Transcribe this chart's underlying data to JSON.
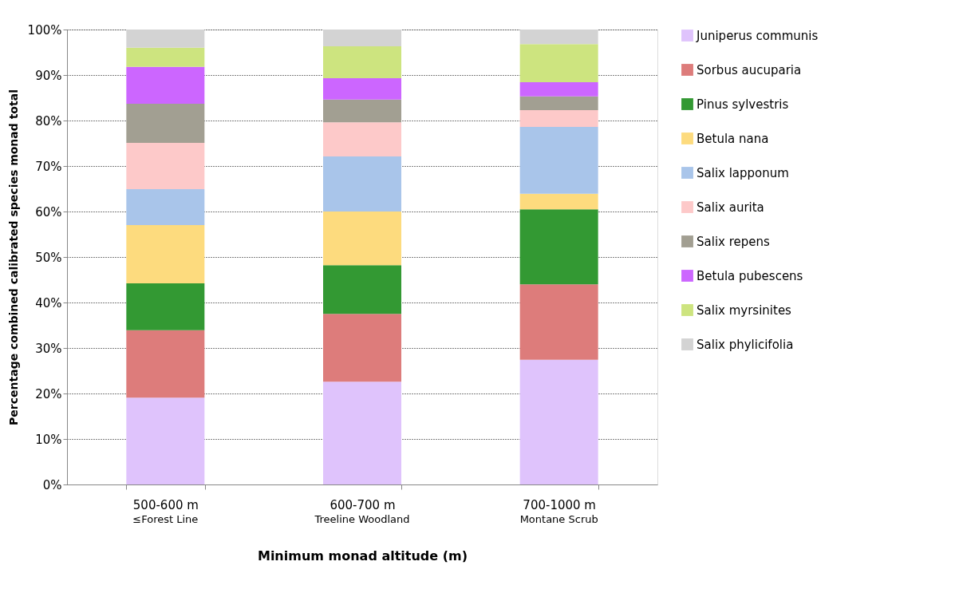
{
  "chart_data": {
    "type": "bar",
    "stacked": true,
    "xlabel": "Minimum monad altitude (m)",
    "ylabel": "Percentage combined calibrated species monad total",
    "categories": [
      "500-600 m",
      "600-700 m",
      "700-1000 m"
    ],
    "series": [
      {
        "name": "Juniperus communis",
        "color": "#dfc3fc",
        "values": [
          19.1,
          22.6,
          27.4
        ]
      },
      {
        "name": "Sorbus aucuparia",
        "color": "#dd7c7b",
        "values": [
          14.8,
          14.9,
          16.6
        ]
      },
      {
        "name": "Pinus sylvestris",
        "color": "#339933",
        "values": [
          10.3,
          10.7,
          16.5
        ]
      },
      {
        "name": "Betula nana",
        "color": "#fddb7e",
        "values": [
          12.8,
          11.8,
          3.4
        ]
      },
      {
        "name": "Salix lapponum",
        "color": "#a9c5ea",
        "values": [
          7.9,
          12.1,
          14.7
        ]
      },
      {
        "name": "Salix aurita",
        "color": "#fdc9c9",
        "values": [
          10.2,
          7.5,
          3.7
        ]
      },
      {
        "name": "Salix repens",
        "color": "#a29f92",
        "values": [
          8.6,
          5.0,
          3.0
        ]
      },
      {
        "name": "Betula pubescens",
        "color": "#cc66ff",
        "values": [
          8.1,
          4.7,
          3.1
        ]
      },
      {
        "name": "Salix myrsinites",
        "color": "#cde47f",
        "values": [
          4.2,
          7.0,
          8.4
        ]
      },
      {
        "name": "Salix phylicifolia",
        "color": "#d3d3d3",
        "values": [
          4.0,
          3.7,
          3.2
        ]
      }
    ],
    "ylim": [
      0,
      100
    ],
    "yticks": [
      {
        "value": 0,
        "label": "0%"
      },
      {
        "value": 10,
        "label": "10%"
      },
      {
        "value": 20,
        "label": "20%"
      },
      {
        "value": 30,
        "label": "30%"
      },
      {
        "value": 40,
        "label": "40%"
      },
      {
        "value": 50,
        "label": "50%"
      },
      {
        "value": 60,
        "label": "60%"
      },
      {
        "value": 70,
        "label": "70%"
      },
      {
        "value": 80,
        "label": "80%"
      },
      {
        "value": 90,
        "label": "90%"
      },
      {
        "value": 100,
        "label": "100%"
      }
    ],
    "annotations": [
      "≤Forest Line",
      "Treeline Woodland",
      "Montane Scrub"
    ],
    "grid": "y",
    "legend": "right"
  }
}
